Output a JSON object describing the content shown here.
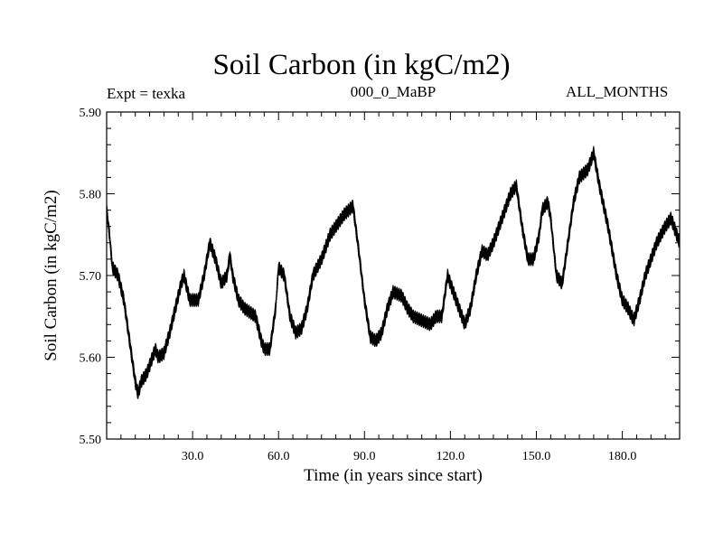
{
  "chart_data": {
    "type": "line",
    "title": "Soil Carbon (in kgC/m2)",
    "subtitle_left": "Expt = texka",
    "subtitle_center": "000_0_MaBP",
    "subtitle_right": "ALL_MONTHS",
    "xlabel": "Time (in years since start)",
    "ylabel": "Soil Carbon (in kgC/m2)",
    "xlim": [
      0,
      200
    ],
    "ylim": [
      5.5,
      5.9
    ],
    "x_ticks": [
      30,
      60,
      90,
      120,
      150,
      180
    ],
    "x_tick_labels": [
      "30.0",
      "60.0",
      "90.0",
      "120.0",
      "150.0",
      "180.0"
    ],
    "y_ticks": [
      5.5,
      5.6,
      5.7,
      5.8,
      5.9
    ],
    "y_tick_labels": [
      "5.50",
      "5.60",
      "5.70",
      "5.80",
      "5.90"
    ],
    "grid": false,
    "series": [
      {
        "name": "Soil Carbon",
        "seasonal_amplitude": 0.008,
        "x": [
          0,
          1,
          2,
          4,
          6,
          8,
          10,
          11,
          12,
          14,
          16,
          17,
          18,
          20,
          22,
          24,
          26,
          27,
          29,
          32,
          34,
          35,
          36,
          38,
          40,
          42,
          43,
          44,
          46,
          48,
          50,
          52,
          54,
          55,
          57,
          59,
          60,
          62,
          64,
          66,
          68,
          70,
          72,
          75,
          78,
          80,
          83,
          86,
          88,
          90,
          92,
          94,
          96,
          98,
          100,
          103,
          105,
          107,
          110,
          113,
          115,
          117,
          119,
          121,
          123,
          125,
          127,
          129,
          131,
          133,
          135,
          137,
          139,
          141,
          143,
          145,
          147,
          149,
          151,
          152,
          154,
          155,
          157,
          159,
          161,
          163,
          165,
          168,
          170,
          172,
          175,
          178,
          180,
          182,
          184,
          186,
          188,
          190,
          192,
          195,
          197,
          200
        ],
        "values": [
          5.78,
          5.75,
          5.71,
          5.7,
          5.67,
          5.62,
          5.57,
          5.555,
          5.57,
          5.58,
          5.6,
          5.61,
          5.6,
          5.605,
          5.63,
          5.66,
          5.69,
          5.7,
          5.67,
          5.67,
          5.7,
          5.72,
          5.74,
          5.72,
          5.69,
          5.7,
          5.725,
          5.7,
          5.67,
          5.66,
          5.655,
          5.65,
          5.62,
          5.61,
          5.61,
          5.66,
          5.71,
          5.7,
          5.65,
          5.63,
          5.635,
          5.66,
          5.7,
          5.72,
          5.75,
          5.76,
          5.775,
          5.785,
          5.73,
          5.67,
          5.625,
          5.62,
          5.63,
          5.66,
          5.68,
          5.675,
          5.66,
          5.65,
          5.645,
          5.64,
          5.65,
          5.65,
          5.7,
          5.68,
          5.66,
          5.64,
          5.66,
          5.7,
          5.73,
          5.725,
          5.74,
          5.76,
          5.78,
          5.8,
          5.81,
          5.76,
          5.72,
          5.72,
          5.75,
          5.78,
          5.79,
          5.77,
          5.7,
          5.69,
          5.74,
          5.79,
          5.82,
          5.83,
          5.85,
          5.81,
          5.76,
          5.7,
          5.67,
          5.66,
          5.645,
          5.67,
          5.7,
          5.72,
          5.74,
          5.76,
          5.77,
          5.74
        ]
      }
    ]
  }
}
